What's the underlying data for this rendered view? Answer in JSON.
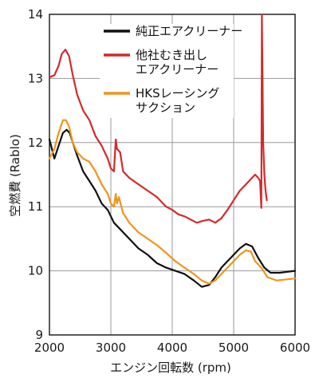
{
  "chart_data": {
    "type": "line",
    "xlabel": "エンジン回転数 (rpm)",
    "ylabel": "空燃費 (Rablo)",
    "xlim": [
      2000,
      6000
    ],
    "ylim": [
      9,
      14
    ],
    "xticks": [
      "2000",
      "3000",
      "4000",
      "5000",
      "6000"
    ],
    "yticks": [
      "9",
      "10",
      "11",
      "12",
      "13",
      "14"
    ],
    "grid": true,
    "legend_position": "top-right",
    "series": [
      {
        "name": "純正エアクリーナー",
        "color": "#111111",
        "x": [
          2000,
          2080,
          2150,
          2220,
          2280,
          2330,
          2380,
          2450,
          2550,
          2650,
          2750,
          2850,
          2950,
          3050,
          3150,
          3300,
          3450,
          3600,
          3750,
          3900,
          4050,
          4200,
          4350,
          4480,
          4600,
          4700,
          4800,
          4900,
          5000,
          5100,
          5200,
          5300,
          5400,
          5500,
          5600,
          5750,
          6000
        ],
        "y": [
          12.05,
          11.75,
          11.95,
          12.15,
          12.2,
          12.15,
          12.0,
          11.8,
          11.55,
          11.4,
          11.25,
          11.05,
          10.95,
          10.75,
          10.65,
          10.5,
          10.35,
          10.25,
          10.12,
          10.05,
          10.0,
          9.95,
          9.85,
          9.75,
          9.78,
          9.9,
          10.05,
          10.15,
          10.25,
          10.35,
          10.42,
          10.38,
          10.2,
          10.05,
          9.97,
          9.97,
          10.0
        ]
      },
      {
        "name": "他社むき出し\nエアクリーナー",
        "color": "#d42a2a",
        "x": [
          2000,
          2080,
          2150,
          2200,
          2260,
          2320,
          2380,
          2450,
          2550,
          2650,
          2750,
          2850,
          2950,
          3000,
          3050,
          3080,
          3100,
          3150,
          3200,
          3300,
          3450,
          3600,
          3750,
          3900,
          4000,
          4100,
          4200,
          4300,
          4400,
          4500,
          4600,
          4700,
          4800,
          4900,
          5000,
          5100,
          5200,
          5300,
          5350,
          5400,
          5430,
          5450,
          5460,
          5480,
          5500,
          5520,
          5540
        ],
        "y": [
          13.02,
          13.05,
          13.2,
          13.38,
          13.45,
          13.35,
          13.05,
          12.75,
          12.5,
          12.35,
          12.1,
          11.95,
          11.75,
          11.6,
          11.55,
          12.05,
          11.9,
          11.85,
          11.55,
          11.45,
          11.35,
          11.25,
          11.15,
          11.0,
          10.95,
          10.88,
          10.85,
          10.8,
          10.75,
          10.78,
          10.8,
          10.75,
          10.82,
          10.95,
          11.1,
          11.25,
          11.35,
          11.45,
          11.5,
          11.45,
          11.4,
          10.98,
          14.0,
          12.0,
          11.5,
          11.25,
          11.1
        ]
      },
      {
        "name": "HKSレーシング\nサクション",
        "color": "#f0941c",
        "x": [
          2000,
          2080,
          2150,
          2220,
          2270,
          2320,
          2380,
          2450,
          2550,
          2650,
          2750,
          2850,
          2950,
          3000,
          3050,
          3080,
          3100,
          3130,
          3200,
          3300,
          3450,
          3600,
          3750,
          3900,
          4050,
          4200,
          4350,
          4480,
          4600,
          4700,
          4800,
          4900,
          5000,
          5100,
          5200,
          5280,
          5350,
          5450,
          5550,
          5700,
          6000
        ],
        "y": [
          11.75,
          11.9,
          12.15,
          12.35,
          12.35,
          12.25,
          12.0,
          11.85,
          11.75,
          11.7,
          11.55,
          11.35,
          11.2,
          11.05,
          11.0,
          11.2,
          11.05,
          11.15,
          10.9,
          10.75,
          10.6,
          10.5,
          10.4,
          10.28,
          10.15,
          10.05,
          9.95,
          9.85,
          9.8,
          9.85,
          9.95,
          10.05,
          10.15,
          10.25,
          10.32,
          10.3,
          10.15,
          10.05,
          9.9,
          9.85,
          9.88
        ]
      }
    ]
  }
}
